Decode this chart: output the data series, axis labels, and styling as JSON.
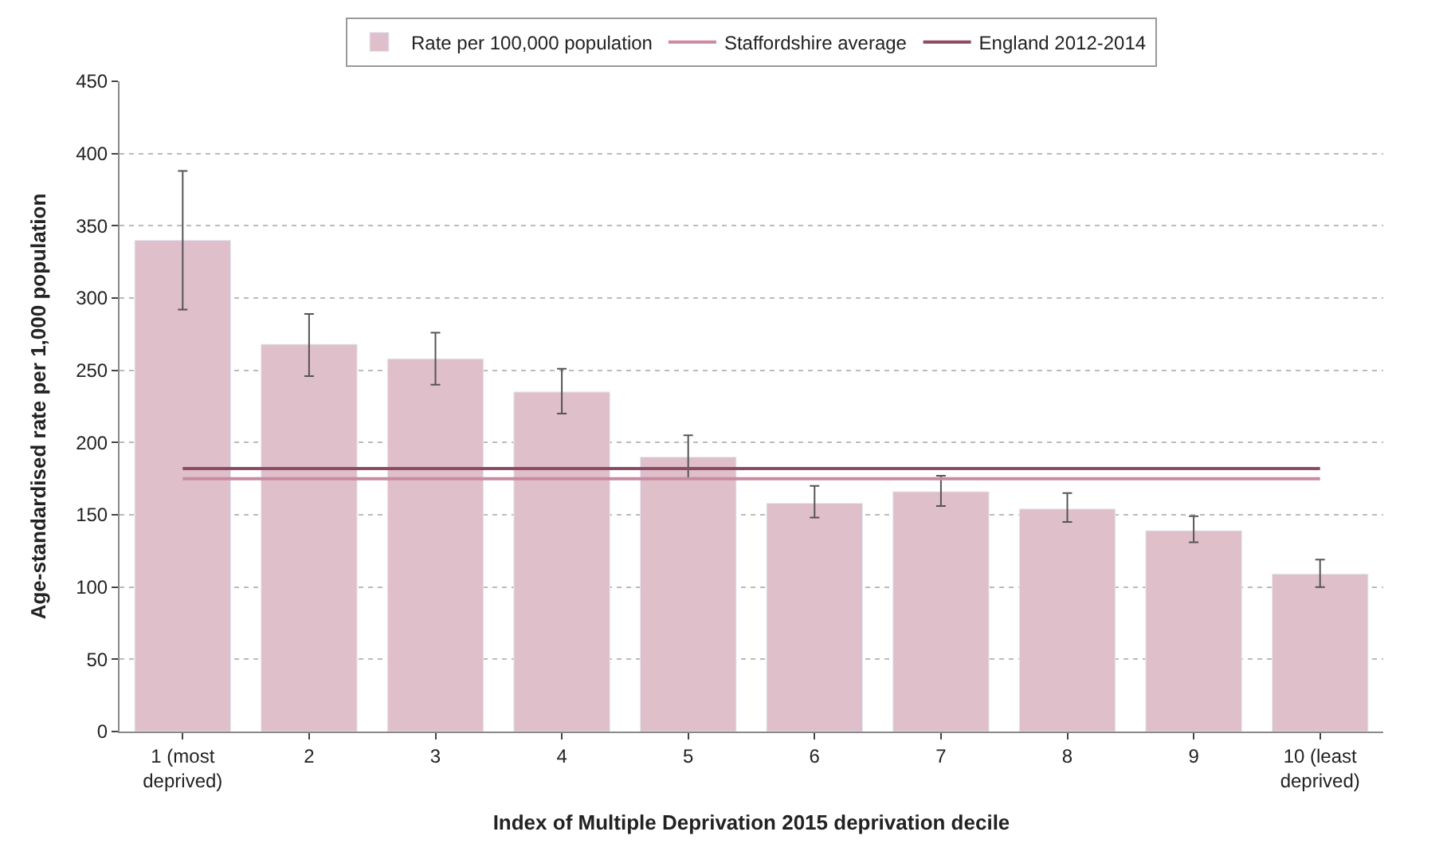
{
  "chart_data": {
    "type": "bar",
    "xlabel": "Index of Multiple Deprivation 2015 deprivation decile",
    "ylabel": "Age-standardised rate per 1,000 population",
    "categories": [
      "1 (most\ndeprived)",
      "2",
      "3",
      "4",
      "5",
      "6",
      "7",
      "8",
      "9",
      "10 (least\ndeprived)"
    ],
    "series": [
      {
        "name": "Rate per 100,000 population",
        "color": "#dfbfca",
        "values": [
          340,
          268,
          258,
          235,
          190,
          158,
          166,
          154,
          139,
          109
        ],
        "errors": [
          [
            292,
            388
          ],
          [
            246,
            289
          ],
          [
            240,
            276
          ],
          [
            220,
            251
          ],
          [
            175,
            205
          ],
          [
            148,
            170
          ],
          [
            156,
            177
          ],
          [
            145,
            165
          ],
          [
            131,
            149
          ],
          [
            100,
            119
          ]
        ]
      }
    ],
    "ref_lines": [
      {
        "axis": "y",
        "value": 175,
        "label": "Staffordshire average",
        "color": "#c98ba0"
      },
      {
        "axis": "y",
        "value": 182,
        "label": "England 2012-2014",
        "color": "#8e4a64"
      }
    ],
    "ylim": [
      0,
      450
    ],
    "yticks": [
      0,
      50,
      100,
      150,
      200,
      250,
      300,
      350,
      400,
      450
    ],
    "grid": "y",
    "legend": "top"
  }
}
